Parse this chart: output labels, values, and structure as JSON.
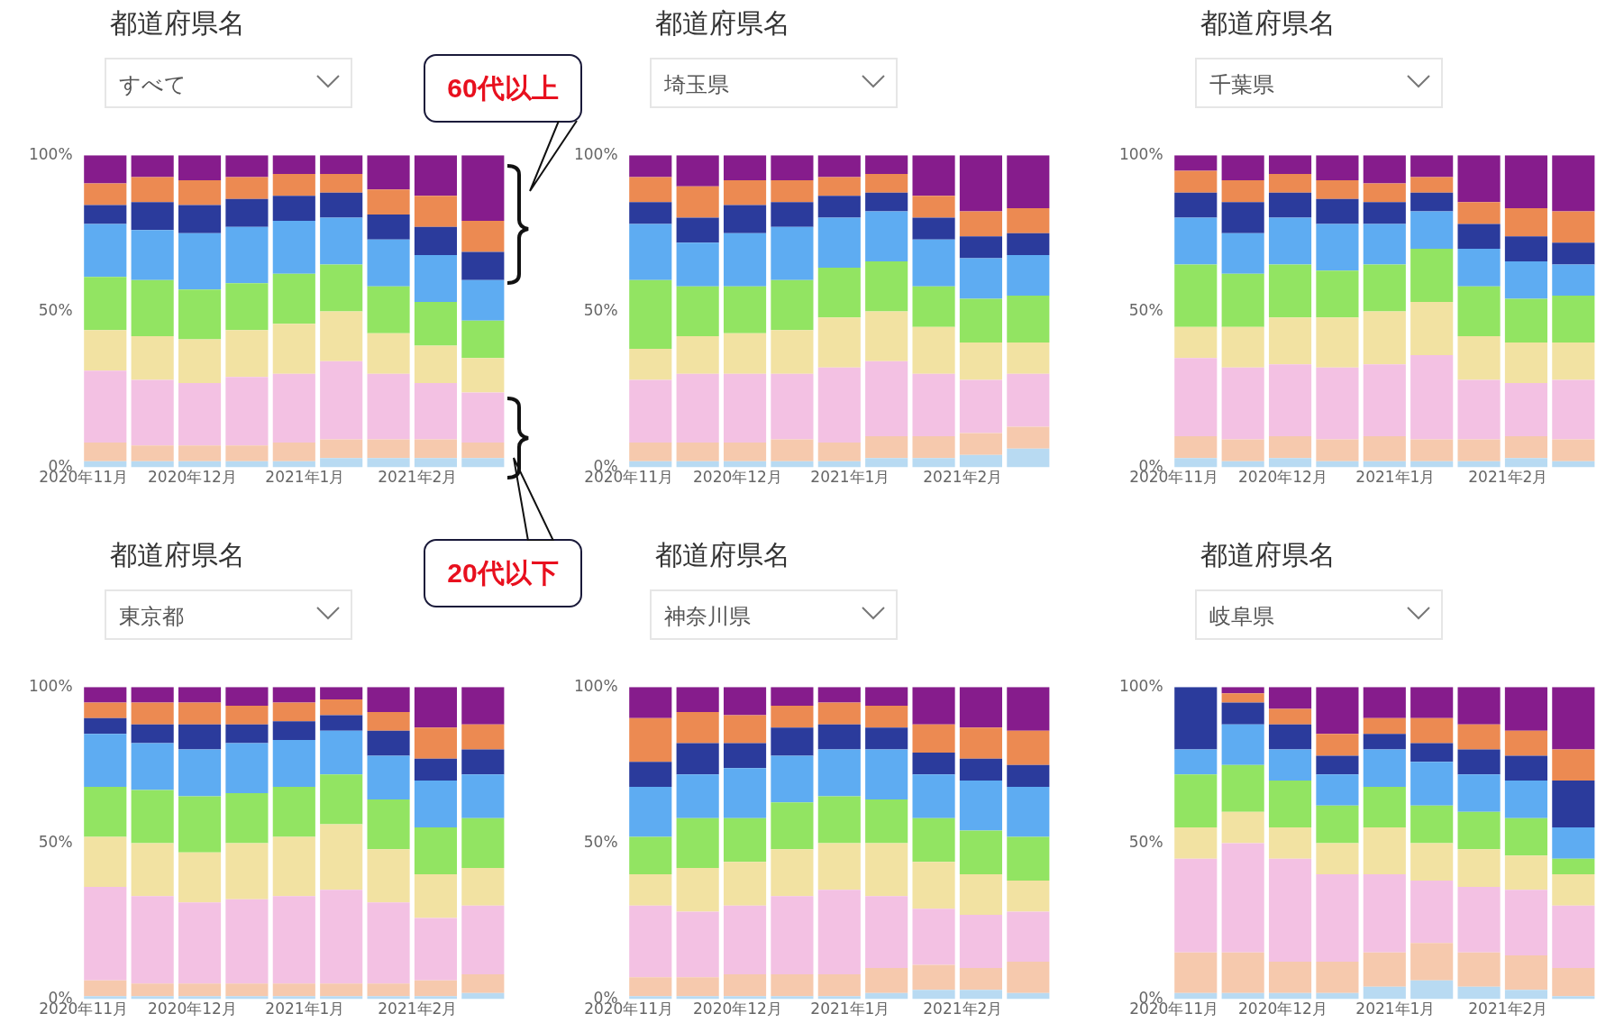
{
  "chart_data": [
    {
      "type": "bar",
      "title": "都道府県名",
      "subtitle": "すべて",
      "stacked": true,
      "x": [
        "2020-11-07",
        "2020-11-20",
        "2020-12-03",
        "2020-12-16",
        "2020-12-29",
        "2021-01-11",
        "2021-01-24",
        "2021-02-06",
        "2021-02-19"
      ],
      "xlim": [
        "2020-11-01",
        "2021-02-25"
      ],
      "xticks": [
        {
          "value": "2020-11-01",
          "label": "2020年11月"
        },
        {
          "value": "2020-12-01",
          "label": "2020年12月"
        },
        {
          "value": "2021-01-01",
          "label": "2021年1月"
        },
        {
          "value": "2021-02-01",
          "label": "2021年2月"
        }
      ],
      "ylim": [
        0,
        100
      ],
      "yticks": [
        {
          "value": 0,
          "label": "0%"
        },
        {
          "value": 50,
          "label": "50%"
        },
        {
          "value": 100,
          "label": "100%"
        }
      ],
      "annotations": [
        "60代以上",
        "20代以下"
      ],
      "series": [
        {
          "color": "#b8daf2",
          "values": [
            2,
            2,
            2,
            2,
            2,
            3,
            3,
            3,
            3
          ]
        },
        {
          "color": "#f6c9ad",
          "values": [
            6,
            5,
            5,
            5,
            6,
            6,
            6,
            6,
            5
          ]
        },
        {
          "color": "#f3c1e3",
          "values": [
            23,
            21,
            20,
            22,
            22,
            25,
            21,
            18,
            16
          ]
        },
        {
          "color": "#f2e2a2",
          "values": [
            13,
            14,
            14,
            15,
            16,
            16,
            13,
            12,
            11
          ]
        },
        {
          "color": "#92e462",
          "values": [
            17,
            18,
            16,
            15,
            16,
            15,
            15,
            14,
            12
          ]
        },
        {
          "color": "#5eacf2",
          "values": [
            17,
            16,
            18,
            18,
            17,
            15,
            15,
            15,
            13
          ]
        },
        {
          "color": "#2b3b9c",
          "values": [
            6,
            9,
            9,
            9,
            8,
            8,
            8,
            9,
            9
          ]
        },
        {
          "color": "#ec8a52",
          "values": [
            7,
            8,
            8,
            7,
            7,
            6,
            8,
            10,
            10
          ]
        },
        {
          "color": "#861c8c",
          "values": [
            9,
            7,
            8,
            7,
            6,
            6,
            11,
            13,
            21
          ]
        }
      ]
    },
    {
      "type": "bar",
      "title": "都道府県名",
      "subtitle": "埼玉県",
      "stacked": true,
      "x": [
        "2020-11-07",
        "2020-11-20",
        "2020-12-03",
        "2020-12-16",
        "2020-12-29",
        "2021-01-11",
        "2021-01-24",
        "2021-02-06",
        "2021-02-19"
      ],
      "xlim": [
        "2020-11-01",
        "2021-02-25"
      ],
      "xticks": [
        {
          "value": "2020-11-01",
          "label": "2020年11月"
        },
        {
          "value": "2020-12-01",
          "label": "2020年12月"
        },
        {
          "value": "2021-01-01",
          "label": "2021年1月"
        },
        {
          "value": "2021-02-01",
          "label": "2021年2月"
        }
      ],
      "ylim": [
        0,
        100
      ],
      "yticks": [
        {
          "value": 0,
          "label": "0%"
        },
        {
          "value": 50,
          "label": "50%"
        },
        {
          "value": 100,
          "label": "100%"
        }
      ],
      "series": [
        {
          "color": "#b8daf2",
          "values": [
            2,
            2,
            2,
            2,
            2,
            3,
            3,
            4,
            6
          ]
        },
        {
          "color": "#f6c9ad",
          "values": [
            6,
            6,
            6,
            7,
            6,
            7,
            7,
            7,
            7
          ]
        },
        {
          "color": "#f3c1e3",
          "values": [
            20,
            22,
            22,
            21,
            24,
            24,
            20,
            17,
            17
          ]
        },
        {
          "color": "#f2e2a2",
          "values": [
            10,
            12,
            13,
            14,
            16,
            16,
            15,
            12,
            10
          ]
        },
        {
          "color": "#92e462",
          "values": [
            22,
            16,
            15,
            16,
            16,
            16,
            13,
            14,
            15
          ]
        },
        {
          "color": "#5eacf2",
          "values": [
            18,
            14,
            17,
            17,
            16,
            16,
            15,
            13,
            13
          ]
        },
        {
          "color": "#2b3b9c",
          "values": [
            7,
            8,
            9,
            8,
            7,
            6,
            7,
            7,
            7
          ]
        },
        {
          "color": "#ec8a52",
          "values": [
            8,
            10,
            8,
            7,
            6,
            6,
            7,
            8,
            8
          ]
        },
        {
          "color": "#861c8c",
          "values": [
            7,
            10,
            8,
            8,
            7,
            6,
            13,
            18,
            17
          ]
        }
      ]
    },
    {
      "type": "bar",
      "title": "都道府県名",
      "subtitle": "千葉県",
      "stacked": true,
      "x": [
        "2020-11-07",
        "2020-11-20",
        "2020-12-03",
        "2020-12-16",
        "2020-12-29",
        "2021-01-11",
        "2021-01-24",
        "2021-02-06",
        "2021-02-19"
      ],
      "xlim": [
        "2020-11-01",
        "2021-02-25"
      ],
      "xticks": [
        {
          "value": "2020-11-01",
          "label": "2020年11月"
        },
        {
          "value": "2020-12-01",
          "label": "2020年12月"
        },
        {
          "value": "2021-01-01",
          "label": "2021年1月"
        },
        {
          "value": "2021-02-01",
          "label": "2021年2月"
        }
      ],
      "ylim": [
        0,
        100
      ],
      "yticks": [
        {
          "value": 0,
          "label": "0%"
        },
        {
          "value": 50,
          "label": "50%"
        },
        {
          "value": 100,
          "label": "100%"
        }
      ],
      "series": [
        {
          "color": "#b8daf2",
          "values": [
            3,
            2,
            3,
            2,
            2,
            2,
            2,
            3,
            2
          ]
        },
        {
          "color": "#f6c9ad",
          "values": [
            7,
            7,
            7,
            7,
            8,
            7,
            7,
            7,
            7
          ]
        },
        {
          "color": "#f3c1e3",
          "values": [
            25,
            23,
            23,
            23,
            23,
            27,
            19,
            17,
            19
          ]
        },
        {
          "color": "#f2e2a2",
          "values": [
            10,
            13,
            15,
            16,
            17,
            17,
            14,
            13,
            12
          ]
        },
        {
          "color": "#92e462",
          "values": [
            20,
            17,
            17,
            15,
            15,
            17,
            16,
            14,
            15
          ]
        },
        {
          "color": "#5eacf2",
          "values": [
            15,
            13,
            15,
            15,
            13,
            12,
            12,
            12,
            10
          ]
        },
        {
          "color": "#2b3b9c",
          "values": [
            8,
            10,
            8,
            8,
            7,
            6,
            8,
            8,
            7
          ]
        },
        {
          "color": "#ec8a52",
          "values": [
            7,
            7,
            6,
            6,
            6,
            5,
            7,
            9,
            10
          ]
        },
        {
          "color": "#861c8c",
          "values": [
            5,
            8,
            6,
            8,
            9,
            7,
            15,
            17,
            18
          ]
        }
      ]
    },
    {
      "type": "bar",
      "title": "都道府県名",
      "subtitle": "東京都",
      "stacked": true,
      "x": [
        "2020-11-07",
        "2020-11-20",
        "2020-12-03",
        "2020-12-16",
        "2020-12-29",
        "2021-01-11",
        "2021-01-24",
        "2021-02-06",
        "2021-02-19"
      ],
      "xlim": [
        "2020-11-01",
        "2021-02-25"
      ],
      "xticks": [
        {
          "value": "2020-11-01",
          "label": "2020年11月"
        },
        {
          "value": "2020-12-01",
          "label": "2020年12月"
        },
        {
          "value": "2021-01-01",
          "label": "2021年1月"
        },
        {
          "value": "2021-02-01",
          "label": "2021年2月"
        }
      ],
      "ylim": [
        0,
        100
      ],
      "yticks": [
        {
          "value": 0,
          "label": "0%"
        },
        {
          "value": 50,
          "label": "50%"
        },
        {
          "value": 100,
          "label": "100%"
        }
      ],
      "series": [
        {
          "color": "#b8daf2",
          "values": [
            1,
            1,
            1,
            1,
            1,
            1,
            1,
            1,
            2
          ]
        },
        {
          "color": "#f6c9ad",
          "values": [
            5,
            4,
            4,
            4,
            4,
            4,
            4,
            5,
            6
          ]
        },
        {
          "color": "#f3c1e3",
          "values": [
            30,
            28,
            26,
            27,
            28,
            30,
            26,
            20,
            22
          ]
        },
        {
          "color": "#f2e2a2",
          "values": [
            16,
            17,
            16,
            18,
            19,
            21,
            17,
            14,
            12
          ]
        },
        {
          "color": "#92e462",
          "values": [
            16,
            17,
            18,
            16,
            16,
            16,
            16,
            15,
            16
          ]
        },
        {
          "color": "#5eacf2",
          "values": [
            17,
            15,
            15,
            16,
            15,
            14,
            14,
            15,
            14
          ]
        },
        {
          "color": "#2b3b9c",
          "values": [
            5,
            6,
            8,
            6,
            6,
            5,
            8,
            7,
            8
          ]
        },
        {
          "color": "#ec8a52",
          "values": [
            5,
            7,
            7,
            6,
            6,
            5,
            6,
            10,
            8
          ]
        },
        {
          "color": "#861c8c",
          "values": [
            5,
            5,
            5,
            6,
            5,
            4,
            8,
            13,
            12
          ]
        }
      ]
    },
    {
      "type": "bar",
      "title": "都道府県名",
      "subtitle": "神奈川県",
      "stacked": true,
      "x": [
        "2020-11-07",
        "2020-11-20",
        "2020-12-03",
        "2020-12-16",
        "2020-12-29",
        "2021-01-11",
        "2021-01-24",
        "2021-02-06",
        "2021-02-19"
      ],
      "xlim": [
        "2020-11-01",
        "2021-02-25"
      ],
      "xticks": [
        {
          "value": "2020-11-01",
          "label": "2020年11月"
        },
        {
          "value": "2020-12-01",
          "label": "2020年12月"
        },
        {
          "value": "2021-01-01",
          "label": "2021年1月"
        },
        {
          "value": "2021-02-01",
          "label": "2021年2月"
        }
      ],
      "ylim": [
        0,
        100
      ],
      "yticks": [
        {
          "value": 0,
          "label": "0%"
        },
        {
          "value": 50,
          "label": "50%"
        },
        {
          "value": 100,
          "label": "100%"
        }
      ],
      "series": [
        {
          "color": "#b8daf2",
          "values": [
            1,
            1,
            1,
            1,
            1,
            2,
            3,
            3,
            2
          ]
        },
        {
          "color": "#f6c9ad",
          "values": [
            6,
            6,
            7,
            7,
            7,
            8,
            8,
            7,
            10
          ]
        },
        {
          "color": "#f3c1e3",
          "values": [
            23,
            21,
            22,
            25,
            27,
            23,
            18,
            17,
            16
          ]
        },
        {
          "color": "#f2e2a2",
          "values": [
            10,
            14,
            14,
            15,
            15,
            17,
            15,
            13,
            10
          ]
        },
        {
          "color": "#92e462",
          "values": [
            12,
            16,
            14,
            15,
            15,
            14,
            14,
            14,
            14
          ]
        },
        {
          "color": "#5eacf2",
          "values": [
            16,
            14,
            16,
            15,
            15,
            16,
            14,
            16,
            16
          ]
        },
        {
          "color": "#2b3b9c",
          "values": [
            8,
            10,
            8,
            9,
            8,
            7,
            7,
            7,
            7
          ]
        },
        {
          "color": "#ec8a52",
          "values": [
            14,
            10,
            9,
            7,
            7,
            7,
            9,
            10,
            11
          ]
        },
        {
          "color": "#861c8c",
          "values": [
            10,
            8,
            9,
            6,
            5,
            6,
            12,
            13,
            14
          ]
        }
      ]
    },
    {
      "type": "bar",
      "title": "都道府県名",
      "subtitle": "岐阜県",
      "stacked": true,
      "x": [
        "2020-11-07",
        "2020-11-20",
        "2020-12-03",
        "2020-12-16",
        "2020-12-29",
        "2021-01-11",
        "2021-01-24",
        "2021-02-06",
        "2021-02-19"
      ],
      "xlim": [
        "2020-11-01",
        "2021-02-25"
      ],
      "xticks": [
        {
          "value": "2020-11-01",
          "label": "2020年11月"
        },
        {
          "value": "2020-12-01",
          "label": "2020年12月"
        },
        {
          "value": "2021-01-01",
          "label": "2021年1月"
        },
        {
          "value": "2021-02-01",
          "label": "2021年2月"
        }
      ],
      "ylim": [
        0,
        100
      ],
      "yticks": [
        {
          "value": 0,
          "label": "0%"
        },
        {
          "value": 50,
          "label": "50%"
        },
        {
          "value": 100,
          "label": "100%"
        }
      ],
      "series": [
        {
          "color": "#b8daf2",
          "values": [
            2,
            2,
            2,
            2,
            4,
            6,
            4,
            3,
            1
          ]
        },
        {
          "color": "#f6c9ad",
          "values": [
            13,
            13,
            10,
            10,
            11,
            12,
            11,
            11,
            9
          ]
        },
        {
          "color": "#f3c1e3",
          "values": [
            30,
            35,
            33,
            28,
            25,
            20,
            21,
            21,
            20
          ]
        },
        {
          "color": "#f2e2a2",
          "values": [
            10,
            10,
            10,
            10,
            15,
            12,
            12,
            11,
            10
          ]
        },
        {
          "color": "#92e462",
          "values": [
            17,
            15,
            15,
            12,
            13,
            12,
            12,
            12,
            5
          ]
        },
        {
          "color": "#5eacf2",
          "values": [
            8,
            13,
            10,
            10,
            12,
            14,
            12,
            12,
            10
          ]
        },
        {
          "color": "#2b3b9c",
          "values": [
            20,
            7,
            8,
            6,
            5,
            6,
            8,
            8,
            15
          ]
        },
        {
          "color": "#ec8a52",
          "values": [
            0,
            3,
            5,
            7,
            5,
            8,
            8,
            8,
            10
          ]
        },
        {
          "color": "#861c8c",
          "values": [
            0,
            2,
            7,
            15,
            10,
            10,
            12,
            14,
            20
          ]
        }
      ]
    }
  ]
}
